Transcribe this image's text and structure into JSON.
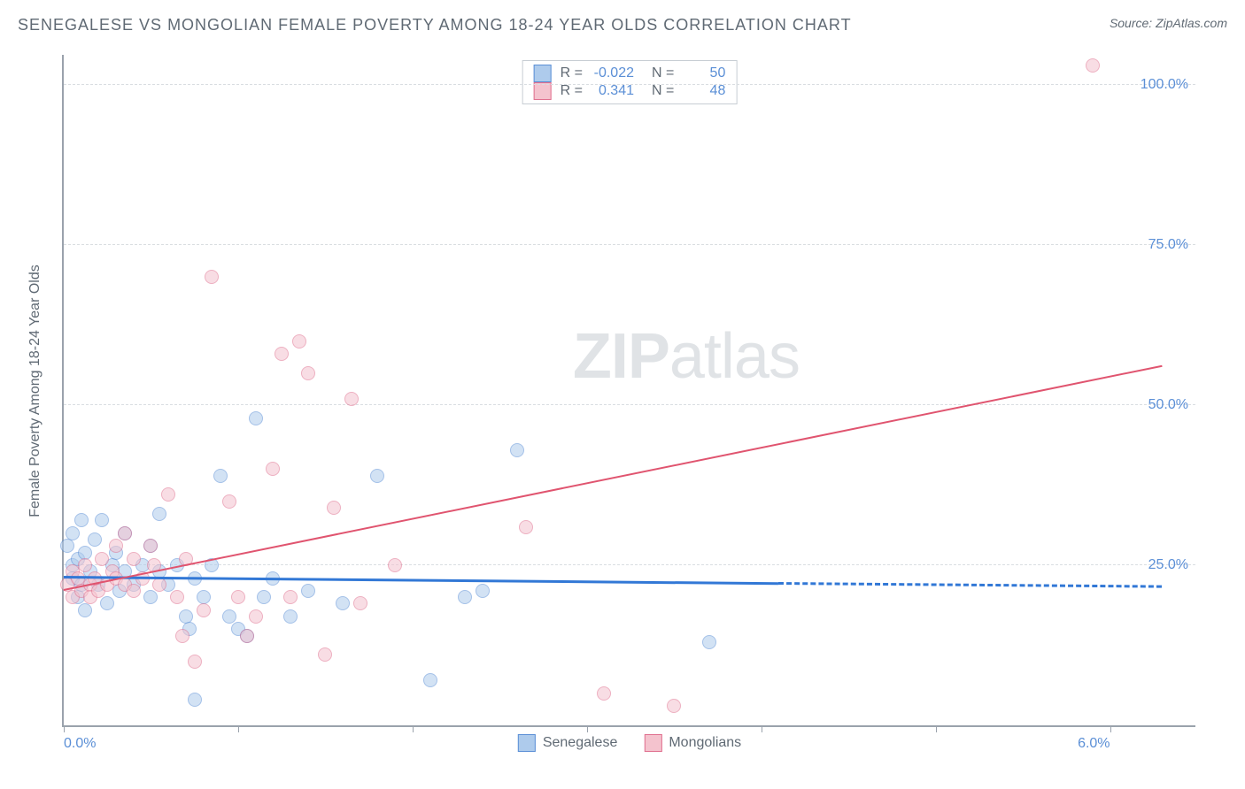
{
  "header": {
    "title": "SENEGALESE VS MONGOLIAN FEMALE POVERTY AMONG 18-24 YEAR OLDS CORRELATION CHART",
    "source": "Source: ZipAtlas.com"
  },
  "chart": {
    "type": "scatter",
    "ylabel": "Female Poverty Among 18-24 Year Olds",
    "background_color": "#ffffff",
    "grid_color": "#d9dde1",
    "axis_color": "#9aa2ac",
    "tick_label_color": "#5b8fd6",
    "label_color": "#606a74",
    "label_fontsize": 16,
    "tick_fontsize": 16,
    "title_fontsize": 18,
    "xlim": [
      0,
      6.5
    ],
    "ylim": [
      0,
      105
    ],
    "xticks": [
      0,
      1,
      2,
      3,
      4,
      5,
      6
    ],
    "xtick_labels": {
      "0": "0.0%",
      "6": "6.0%"
    },
    "yticks": [
      25,
      50,
      75,
      100
    ],
    "ytick_labels": [
      "25.0%",
      "50.0%",
      "75.0%",
      "100.0%"
    ],
    "marker_size": 16,
    "marker_opacity": 0.55,
    "watermark": "ZIPatlas",
    "series": [
      {
        "name": "Senegalese",
        "fill_color": "#aecbec",
        "stroke_color": "#5b8fd6",
        "r_value": "-0.022",
        "n_value": "50",
        "trend": {
          "x1": 0,
          "y1": 23,
          "x2": 4.1,
          "y2": 22,
          "x2_dash": 6.3,
          "y2_dash": 21.5,
          "color": "#3278d6",
          "width": 3
        },
        "points": [
          [
            0.02,
            28
          ],
          [
            0.05,
            25
          ],
          [
            0.05,
            30
          ],
          [
            0.05,
            23
          ],
          [
            0.08,
            26
          ],
          [
            0.08,
            20
          ],
          [
            0.1,
            32
          ],
          [
            0.1,
            22
          ],
          [
            0.12,
            18
          ],
          [
            0.12,
            27
          ],
          [
            0.15,
            24
          ],
          [
            0.18,
            29
          ],
          [
            0.2,
            22
          ],
          [
            0.22,
            32
          ],
          [
            0.25,
            19
          ],
          [
            0.28,
            25
          ],
          [
            0.3,
            27
          ],
          [
            0.32,
            21
          ],
          [
            0.35,
            24
          ],
          [
            0.35,
            30
          ],
          [
            0.4,
            22
          ],
          [
            0.45,
            25
          ],
          [
            0.5,
            28
          ],
          [
            0.5,
            20
          ],
          [
            0.55,
            24
          ],
          [
            0.55,
            33
          ],
          [
            0.6,
            22
          ],
          [
            0.65,
            25
          ],
          [
            0.7,
            17
          ],
          [
            0.72,
            15
          ],
          [
            0.75,
            23
          ],
          [
            0.75,
            4
          ],
          [
            0.8,
            20
          ],
          [
            0.85,
            25
          ],
          [
            0.9,
            39
          ],
          [
            0.95,
            17
          ],
          [
            1.0,
            15
          ],
          [
            1.05,
            14
          ],
          [
            1.1,
            48
          ],
          [
            1.15,
            20
          ],
          [
            1.2,
            23
          ],
          [
            1.3,
            17
          ],
          [
            1.4,
            21
          ],
          [
            1.6,
            19
          ],
          [
            1.8,
            39
          ],
          [
            2.1,
            7
          ],
          [
            2.3,
            20
          ],
          [
            2.4,
            21
          ],
          [
            2.6,
            43
          ],
          [
            3.7,
            13
          ]
        ]
      },
      {
        "name": "Mongolians",
        "fill_color": "#f4c3ce",
        "stroke_color": "#e0708f",
        "r_value": "0.341",
        "n_value": "48",
        "trend": {
          "x1": 0,
          "y1": 21,
          "x2": 6.3,
          "y2": 56,
          "color": "#e0546f",
          "width": 2
        },
        "points": [
          [
            0.02,
            22
          ],
          [
            0.05,
            24
          ],
          [
            0.05,
            20
          ],
          [
            0.08,
            23
          ],
          [
            0.1,
            21
          ],
          [
            0.12,
            25
          ],
          [
            0.15,
            22
          ],
          [
            0.15,
            20
          ],
          [
            0.18,
            23
          ],
          [
            0.2,
            21
          ],
          [
            0.22,
            26
          ],
          [
            0.25,
            22
          ],
          [
            0.28,
            24
          ],
          [
            0.3,
            23
          ],
          [
            0.3,
            28
          ],
          [
            0.35,
            30
          ],
          [
            0.35,
            22
          ],
          [
            0.4,
            26
          ],
          [
            0.4,
            21
          ],
          [
            0.45,
            23
          ],
          [
            0.5,
            28
          ],
          [
            0.52,
            25
          ],
          [
            0.55,
            22
          ],
          [
            0.6,
            36
          ],
          [
            0.65,
            20
          ],
          [
            0.68,
            14
          ],
          [
            0.7,
            26
          ],
          [
            0.75,
            10
          ],
          [
            0.8,
            18
          ],
          [
            0.85,
            70
          ],
          [
            0.95,
            35
          ],
          [
            1.0,
            20
          ],
          [
            1.05,
            14
          ],
          [
            1.1,
            17
          ],
          [
            1.2,
            40
          ],
          [
            1.25,
            58
          ],
          [
            1.3,
            20
          ],
          [
            1.35,
            60
          ],
          [
            1.4,
            55
          ],
          [
            1.5,
            11
          ],
          [
            1.55,
            34
          ],
          [
            1.65,
            51
          ],
          [
            1.7,
            19
          ],
          [
            1.9,
            25
          ],
          [
            2.65,
            31
          ],
          [
            3.1,
            5
          ],
          [
            3.5,
            3
          ],
          [
            5.9,
            103
          ]
        ]
      }
    ],
    "legend_top_labels": {
      "r_label": "R =",
      "n_label": "N ="
    },
    "legend_bottom": [
      "Senegalese",
      "Mongolians"
    ]
  }
}
